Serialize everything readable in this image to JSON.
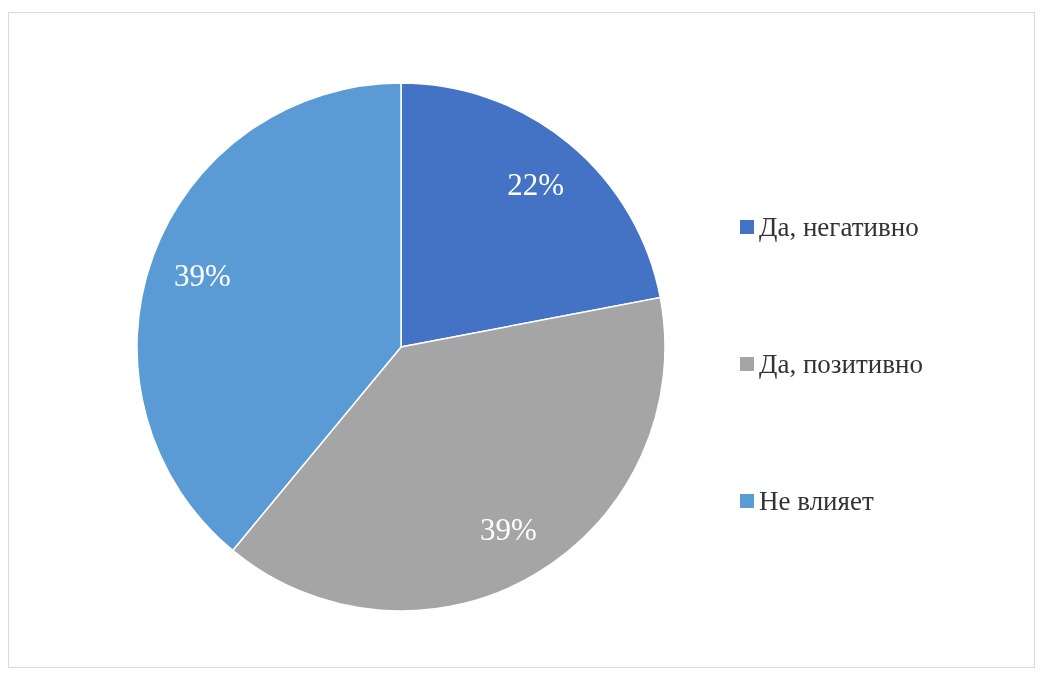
{
  "chart_data": {
    "type": "pie",
    "categories": [
      "Да, негативно",
      "Да, позитивно",
      "Не влияет"
    ],
    "values": [
      22,
      39,
      39
    ],
    "colors": [
      "#4472c4",
      "#a5a5a5",
      "#5b9bd5"
    ],
    "value_labels": [
      "22%",
      "39%",
      "39%"
    ],
    "legend": "right"
  }
}
